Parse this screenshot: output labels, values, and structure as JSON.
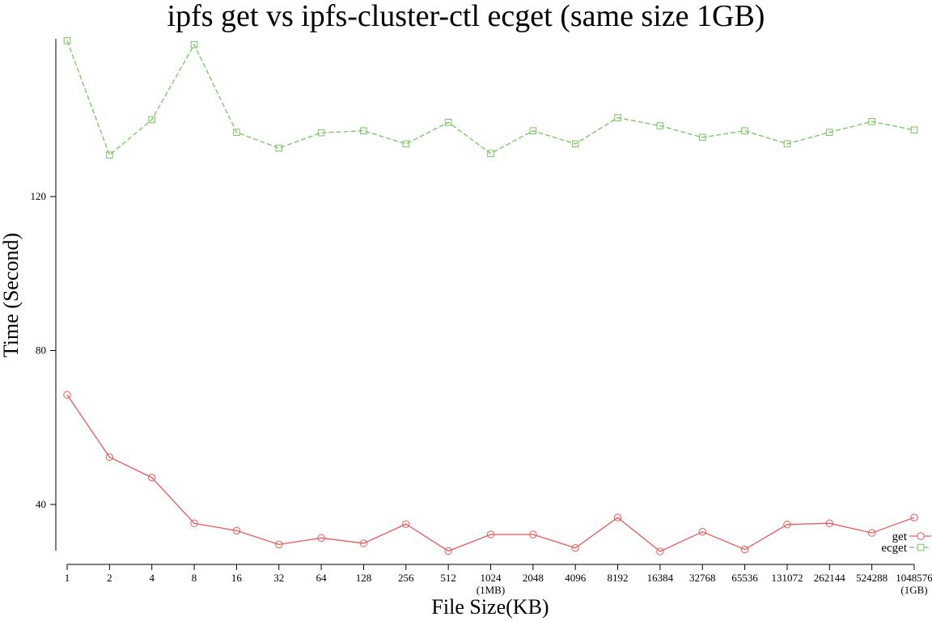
{
  "chart_data": {
    "type": "line",
    "title": "ipfs get vs ipfs-cluster-ctl ecget (same size 1GB)",
    "xlabel": "File Size(KB)",
    "ylabel": "Time (Second)",
    "categories": [
      "1",
      "2",
      "4",
      "8",
      "16",
      "32",
      "64",
      "128",
      "256",
      "512",
      "1024",
      "2048",
      "4096",
      "8192",
      "16384",
      "32768",
      "65536",
      "131072",
      "262144",
      "524288",
      "1048576"
    ],
    "category_sublabels": [
      "",
      "",
      "",
      "",
      "",
      "",
      "",
      "",
      "",
      "",
      "(1MB)",
      "",
      "",
      "",
      "",
      "",
      "",
      "",
      "",
      "",
      "(1GB)"
    ],
    "yticks": [
      40,
      80,
      120
    ],
    "ylim": [
      28,
      161
    ],
    "grid": false,
    "legend_position": "bottom-right",
    "series": [
      {
        "name": "get",
        "color": "#e8585a",
        "marker": "circle",
        "dash": "solid",
        "values": [
          68.5,
          52.3,
          47,
          35.1,
          33.2,
          29.6,
          31.3,
          29.9,
          34.9,
          27.9,
          32.2,
          32.2,
          28.7,
          36.6,
          27.8,
          32.9,
          28.3,
          34.8,
          35.1,
          32.6,
          36.6
        ]
      },
      {
        "name": "ecget",
        "color": "#77c35f",
        "marker": "square",
        "dash": "dashed",
        "values": [
          160.5,
          130.8,
          140,
          159.5,
          136.7,
          132.6,
          136.6,
          137.1,
          133.7,
          139.3,
          131.2,
          137.1,
          133.7,
          140.5,
          138.4,
          135.4,
          137.1,
          133.7,
          136.7,
          139.5,
          137.3
        ]
      }
    ]
  }
}
